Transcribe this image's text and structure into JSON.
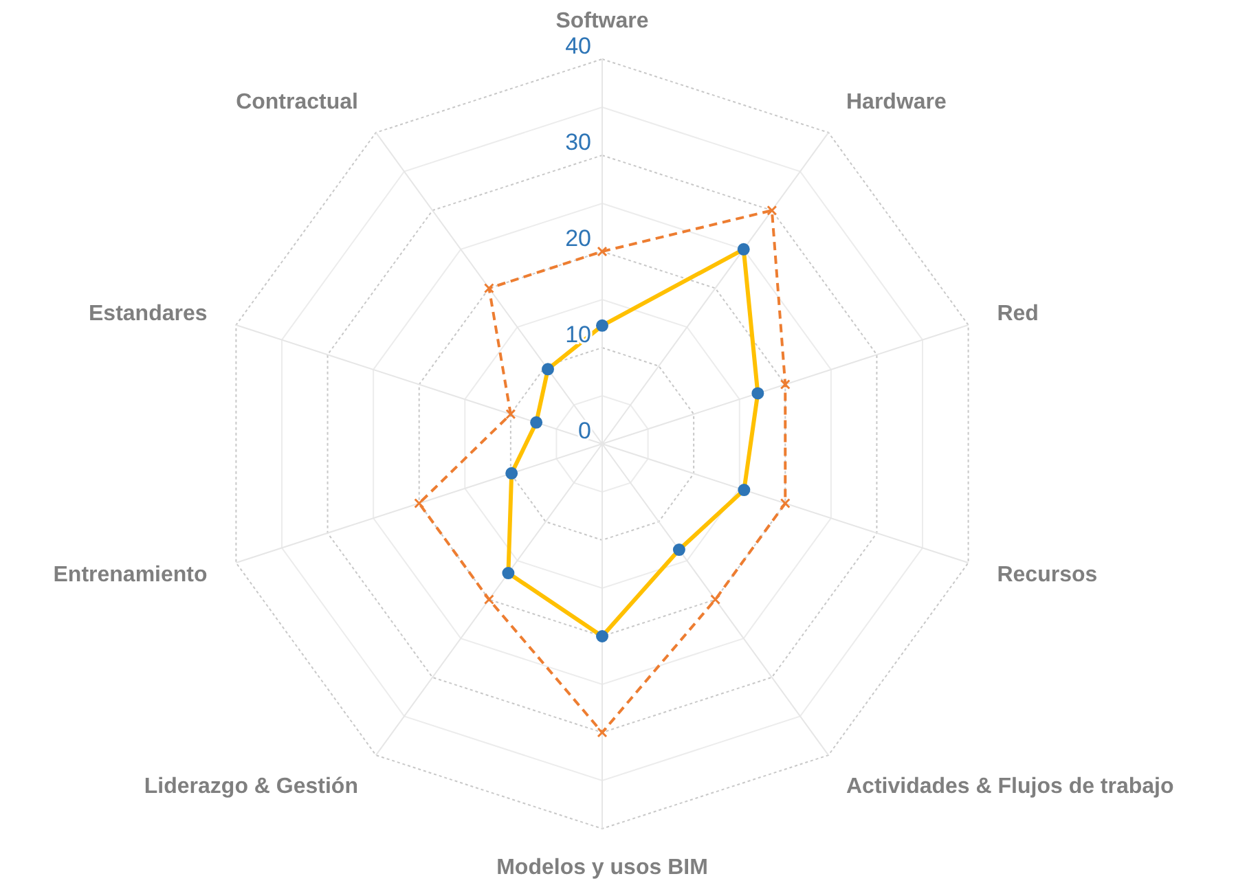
{
  "chart_data": {
    "type": "radar",
    "categories": [
      "Software",
      "Hardware",
      "Red",
      "Recursos",
      "Actividades & Flujos de trabajo",
      "Modelos y usos BIM",
      "Liderazgo & Gestión",
      "Entrenamiento",
      "Estandares",
      "Contractual"
    ],
    "series": [
      {
        "color": "#ed7d31",
        "values": [
          20,
          30,
          20,
          20,
          20,
          30,
          20,
          20,
          10,
          20
        ],
        "line_style": "dashed",
        "marker": "cross"
      },
      {
        "color": "#ffc000",
        "colors": [
          "#2e75b6",
          "#2e75b6",
          "#2e75b6",
          "#2e75b6",
          "#2e75b6",
          "#2e75b6",
          "#2e75b6",
          "#2e75b6",
          "#2e75b6",
          "#2e75b6"
        ],
        "values": [
          12.3,
          25,
          17,
          15.5,
          13.6,
          20,
          16.6,
          9.9,
          7.2,
          9.6
        ],
        "line_style": "solid",
        "marker": "circle"
      }
    ],
    "ylim": [
      0,
      40
    ],
    "yticks": [
      0,
      10,
      20,
      30,
      40
    ],
    "grid": true
  }
}
